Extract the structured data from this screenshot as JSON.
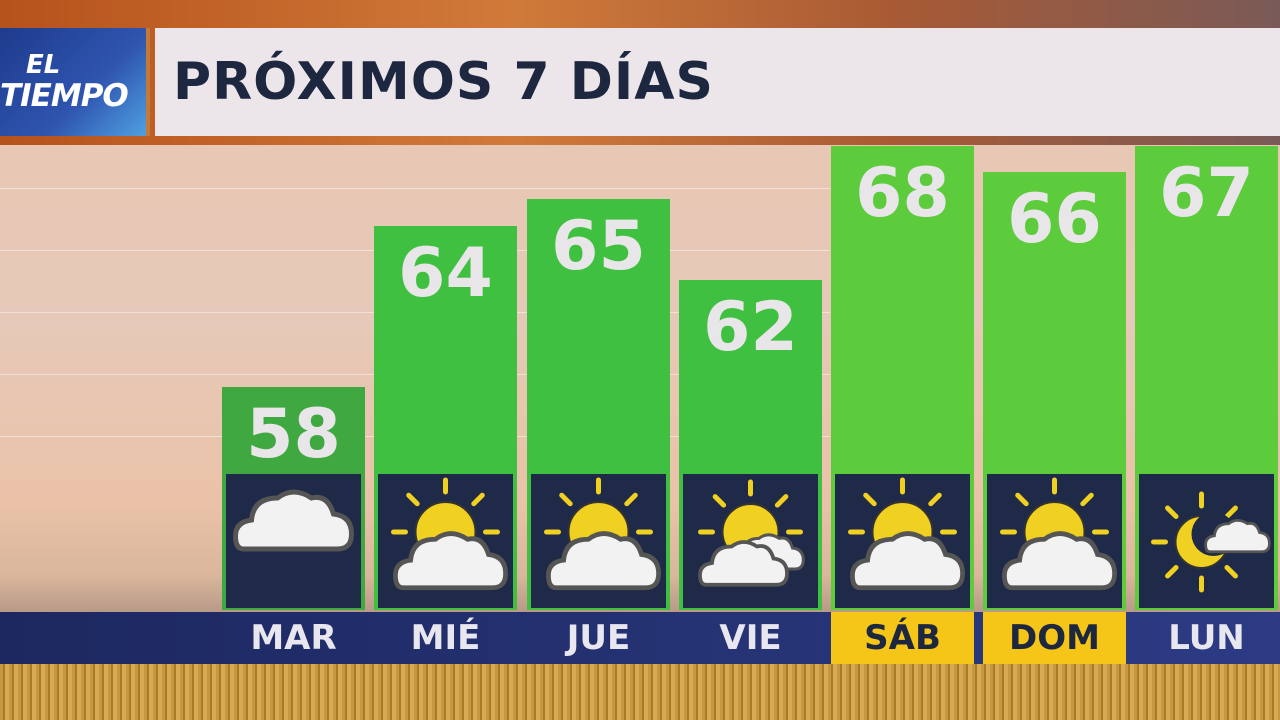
{
  "logo": {
    "line1": "EL",
    "line2": "TIEMPO"
  },
  "header": {
    "title": "PRÓXIMOS 7 DÍAS"
  },
  "colors": {
    "bar": "#40c040",
    "bar_first": "#3fa840",
    "bar_light": "#5ccb3c",
    "highlight": "#f5c518",
    "icon_bg": "#1f2a48"
  },
  "chart_data": {
    "type": "bar",
    "categories": [
      "MAR",
      "MIÉ",
      "JUE",
      "VIE",
      "SÁB",
      "DOM",
      "LUN"
    ],
    "values": [
      58,
      64,
      65,
      62,
      68,
      66,
      67
    ],
    "labels": [
      "58",
      "64",
      "65",
      "62",
      "68",
      "66",
      "67"
    ],
    "icons": [
      "cloudy",
      "partly-sunny",
      "partly-sunny",
      "mostly-cloudy",
      "partly-sunny",
      "partly-sunny",
      "partly-cloudy"
    ],
    "highlighted_days": [
      "SÁB",
      "DOM"
    ],
    "grid": true
  }
}
